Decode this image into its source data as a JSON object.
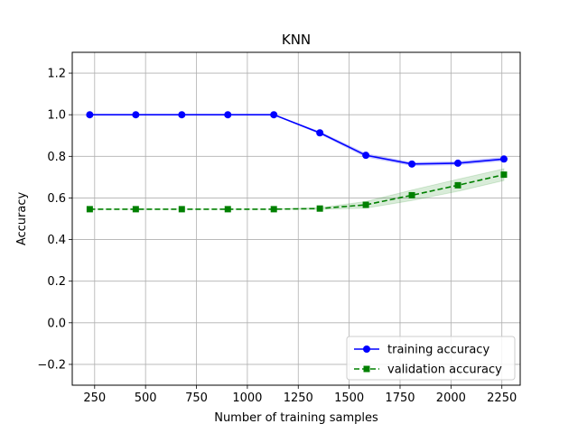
{
  "chart_data": {
    "type": "line",
    "title": "KNN",
    "xlabel": "Number of training samples",
    "ylabel": "Accuracy",
    "xlim": [
      140,
      2340
    ],
    "ylim": [
      -0.3,
      1.3
    ],
    "xticks": [
      250,
      500,
      750,
      1000,
      1250,
      1500,
      1750,
      2000,
      2250
    ],
    "xtick_labels": [
      "250",
      "500",
      "750",
      "1000",
      "1250",
      "1500",
      "1750",
      "2000",
      "2250"
    ],
    "yticks": [
      -0.2,
      0.0,
      0.2,
      0.4,
      0.6,
      0.8,
      1.0,
      1.2
    ],
    "ytick_labels": [
      "−0.2",
      "0.0",
      "0.2",
      "0.4",
      "0.6",
      "0.8",
      "1.0",
      "1.2"
    ],
    "grid": true,
    "legend_position": "bottom-right",
    "x": [
      226,
      452,
      678,
      904,
      1130,
      1356,
      1582,
      1808,
      2034,
      2260
    ],
    "series": [
      {
        "name": "training accuracy",
        "color": "#0000ff",
        "marker": "circle",
        "linestyle": "solid",
        "values": [
          1.0,
          1.0,
          1.0,
          1.0,
          1.0,
          0.913,
          0.805,
          0.763,
          0.767,
          0.787
        ],
        "band_lower": [
          1.0,
          1.0,
          1.0,
          1.0,
          1.0,
          0.908,
          0.797,
          0.756,
          0.759,
          0.779
        ],
        "band_upper": [
          1.0,
          1.0,
          1.0,
          1.0,
          1.0,
          0.918,
          0.813,
          0.77,
          0.775,
          0.795
        ]
      },
      {
        "name": "validation accuracy",
        "color": "#008000",
        "marker": "square",
        "linestyle": "dashed",
        "values": [
          0.546,
          0.546,
          0.546,
          0.546,
          0.546,
          0.549,
          0.567,
          0.613,
          0.661,
          0.712
        ],
        "band_lower": [
          0.546,
          0.546,
          0.546,
          0.546,
          0.546,
          0.545,
          0.551,
          0.588,
          0.632,
          0.684
        ],
        "band_upper": [
          0.546,
          0.546,
          0.546,
          0.546,
          0.546,
          0.553,
          0.583,
          0.638,
          0.69,
          0.74
        ]
      }
    ]
  }
}
